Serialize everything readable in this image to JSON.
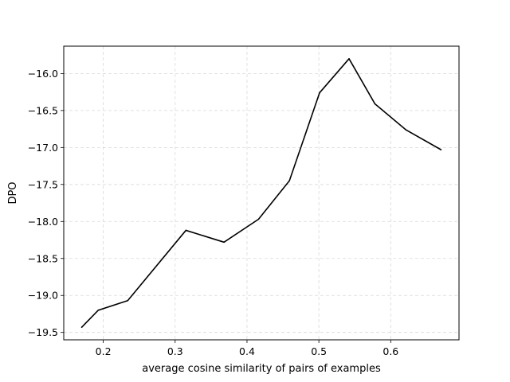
{
  "chart_data": {
    "type": "line",
    "title": "",
    "xlabel": "average cosine similarity of pairs of examples",
    "ylabel": "DPO",
    "xlim": [
      0.145,
      0.695
    ],
    "ylim": [
      -19.6,
      -15.63
    ],
    "xticks": [
      0.2,
      0.3,
      0.4,
      0.5,
      0.6
    ],
    "xtick_labels": [
      "0.2",
      "0.3",
      "0.4",
      "0.5",
      "0.6"
    ],
    "yticks": [
      -16.0,
      -16.5,
      -17.0,
      -17.5,
      -18.0,
      -18.5,
      -19.0,
      -19.5
    ],
    "ytick_labels": [
      "−16.0",
      "−16.5",
      "−17.0",
      "−17.5",
      "−18.0",
      "−18.5",
      "−19.0",
      "−19.5"
    ],
    "grid": true,
    "grid_style": "dashed",
    "series": [
      {
        "color": "#000000",
        "x": [
          0.17,
          0.193,
          0.234,
          0.315,
          0.368,
          0.416,
          0.459,
          0.501,
          0.542,
          0.578,
          0.621,
          0.67
        ],
        "y": [
          -19.43,
          -19.2,
          -19.07,
          -18.12,
          -18.28,
          -17.97,
          -17.45,
          -16.26,
          -15.8,
          -16.41,
          -16.76,
          -17.03
        ]
      }
    ]
  }
}
